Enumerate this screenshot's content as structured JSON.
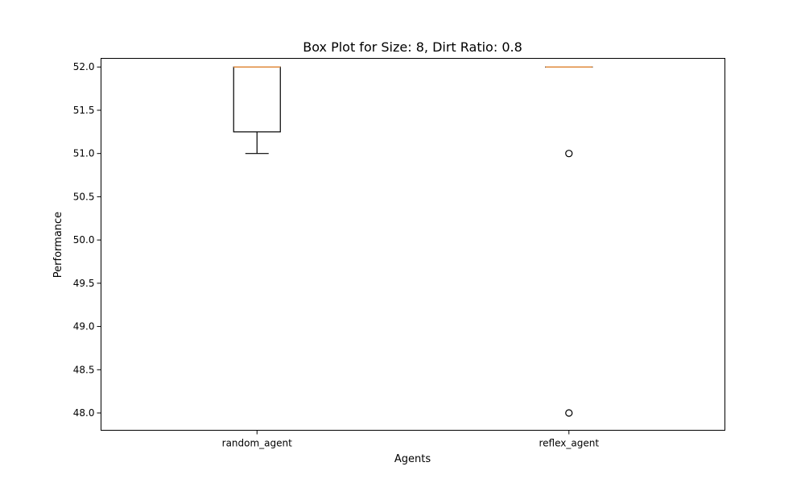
{
  "chart_data": {
    "type": "box",
    "title": "Box Plot for Size: 8, Dirt Ratio: 0.8",
    "xlabel": "Agents",
    "ylabel": "Performance",
    "ylim": [
      47.8,
      52.1
    ],
    "yticks": [
      "48.0",
      "48.5",
      "49.0",
      "49.5",
      "50.0",
      "50.5",
      "51.0",
      "51.5",
      "52.0"
    ],
    "categories": [
      "random_agent",
      "reflex_agent"
    ],
    "boxes": [
      {
        "name": "random_agent",
        "whisker_low": 51.0,
        "q1": 51.25,
        "median": 52.0,
        "q3": 52.0,
        "whisker_high": 52.0,
        "outliers": []
      },
      {
        "name": "reflex_agent",
        "whisker_low": 52.0,
        "q1": 52.0,
        "median": 52.0,
        "q3": 52.0,
        "whisker_high": 52.0,
        "outliers": [
          51.0,
          48.0
        ]
      }
    ],
    "colors": {
      "box": "#000000",
      "median": "#e08a3c",
      "axes": "#000000"
    },
    "grid": false
  }
}
